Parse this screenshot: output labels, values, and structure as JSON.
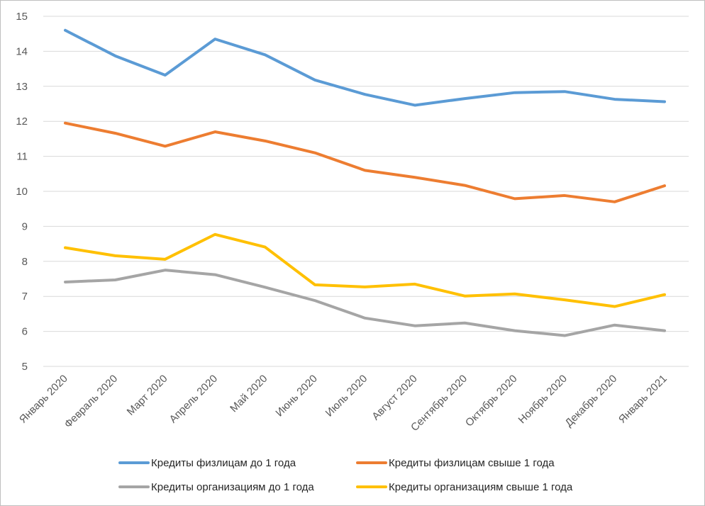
{
  "chart_data": {
    "type": "line",
    "title": "",
    "xlabel": "",
    "ylabel": "",
    "ylim": [
      5,
      15
    ],
    "yticks": [
      5,
      6,
      7,
      8,
      9,
      10,
      11,
      12,
      13,
      14,
      15
    ],
    "grid": true,
    "legend_position": "bottom",
    "categories": [
      "Январь 2020",
      "Февраль 2020",
      "Март 2020",
      "Апрель 2020",
      "Май 2020",
      "Июнь 2020",
      "Июль 2020",
      "Август 2020",
      "Сентябрь 2020",
      "Октябрь 2020",
      "Ноябрь 2020",
      "Декабрь 2020",
      "Январь 2021"
    ],
    "series": [
      {
        "name": "Кредиты физлицам до 1 года",
        "color": "#5b9bd5",
        "values": [
          14.6,
          13.87,
          13.32,
          14.35,
          13.9,
          13.18,
          12.77,
          12.46,
          12.65,
          12.82,
          12.85,
          12.63,
          12.56
        ]
      },
      {
        "name": "Кредиты физлицам свыше 1 года",
        "color": "#ed7d31",
        "values": [
          11.95,
          11.66,
          11.29,
          11.7,
          11.44,
          11.1,
          10.6,
          10.4,
          10.17,
          9.79,
          9.88,
          9.7,
          10.16
        ]
      },
      {
        "name": "Кредиты организациям до 1 года",
        "color": "#a5a5a5",
        "values": [
          7.41,
          7.47,
          7.75,
          7.62,
          7.26,
          6.88,
          6.38,
          6.16,
          6.24,
          6.02,
          5.88,
          6.18,
          6.02
        ]
      },
      {
        "name": "Кредиты организациям свыше 1 года",
        "color": "#ffc000",
        "values": [
          8.39,
          8.16,
          8.06,
          8.77,
          8.41,
          7.33,
          7.27,
          7.35,
          7.01,
          7.07,
          6.9,
          6.71,
          7.05
        ]
      }
    ]
  }
}
